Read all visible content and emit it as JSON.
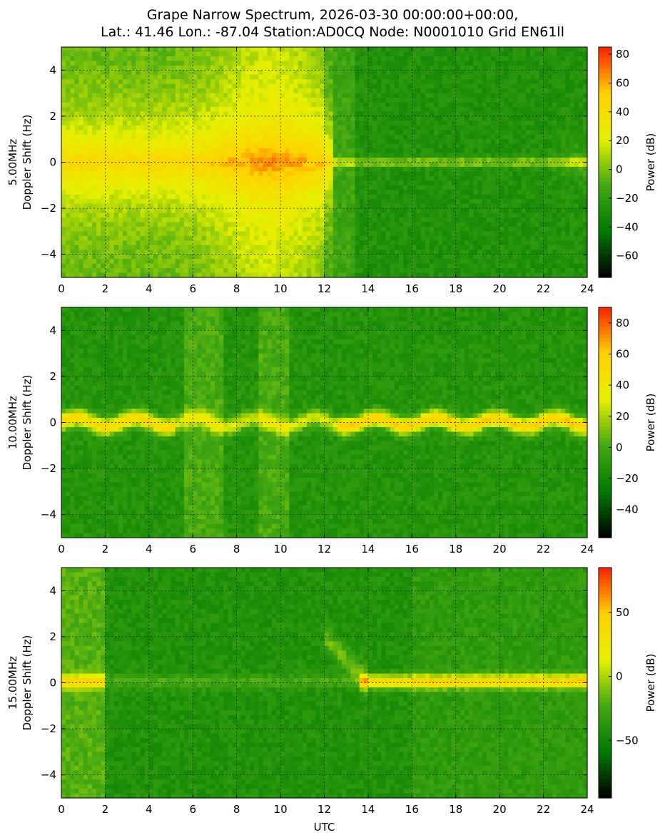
{
  "title_line1": "Grape Narrow Spectrum, 2026-03-30 00:00:00+00:00,",
  "title_line2": "Lat.: 41.46 Lon.: -87.04 Station:AD0CQ Node: N0001010 Grid EN61ll",
  "colors": {
    "colormap": [
      "#000000",
      "#007a00",
      "#44a813",
      "#e6f000",
      "#ffd200",
      "#ff2000"
    ],
    "grid": "#1a1a1a"
  },
  "chart_data": [
    {
      "type": "heatmap",
      "ylabel_line1": "5.00MHz",
      "ylabel_line2": "Doppler Shift (Hz)",
      "xlabel": "",
      "x_ticks": [
        "0",
        "2",
        "4",
        "6",
        "8",
        "10",
        "12",
        "14",
        "16",
        "18",
        "20",
        "22",
        "24"
      ],
      "y_ticks": [
        "4",
        "2",
        "0",
        "−2",
        "−4"
      ],
      "xlim": [
        0,
        24
      ],
      "ylim": [
        -5,
        5
      ],
      "colorbar": {
        "label": "Power (dB)",
        "range": [
          -75,
          85
        ],
        "ticks": [
          "80",
          "60",
          "40",
          "20",
          "0",
          "−20",
          "−40",
          "−60"
        ],
        "tick_values": [
          80,
          60,
          40,
          20,
          0,
          -20,
          -40,
          -60
        ]
      },
      "grid": true
    },
    {
      "type": "heatmap",
      "ylabel_line1": "10.00MHz",
      "ylabel_line2": "Doppler Shift (Hz)",
      "xlabel": "",
      "x_ticks": [
        "0",
        "2",
        "4",
        "6",
        "8",
        "10",
        "12",
        "14",
        "16",
        "18",
        "20",
        "22",
        "24"
      ],
      "y_ticks": [
        "4",
        "2",
        "0",
        "−2",
        "−4"
      ],
      "xlim": [
        0,
        24
      ],
      "ylim": [
        -5,
        5
      ],
      "colorbar": {
        "label": "Power (dB)",
        "range": [
          -58,
          90
        ],
        "ticks": [
          "80",
          "60",
          "40",
          "20",
          "0",
          "−20",
          "−40"
        ],
        "tick_values": [
          80,
          60,
          40,
          20,
          0,
          -20,
          -40
        ]
      },
      "grid": true
    },
    {
      "type": "heatmap",
      "ylabel_line1": "15.00MHz",
      "ylabel_line2": "Doppler Shift (Hz)",
      "xlabel": "UTC",
      "x_ticks": [
        "0",
        "2",
        "4",
        "6",
        "8",
        "10",
        "12",
        "14",
        "16",
        "18",
        "20",
        "22",
        "24"
      ],
      "y_ticks": [
        "4",
        "2",
        "0",
        "−2",
        "−4"
      ],
      "xlim": [
        0,
        24
      ],
      "ylim": [
        -5,
        5
      ],
      "colorbar": {
        "label": "Power (dB)",
        "range": [
          -95,
          85
        ],
        "ticks": [
          "50",
          "0",
          "−50"
        ],
        "tick_values": [
          50,
          0,
          -50
        ]
      },
      "grid": true
    }
  ]
}
